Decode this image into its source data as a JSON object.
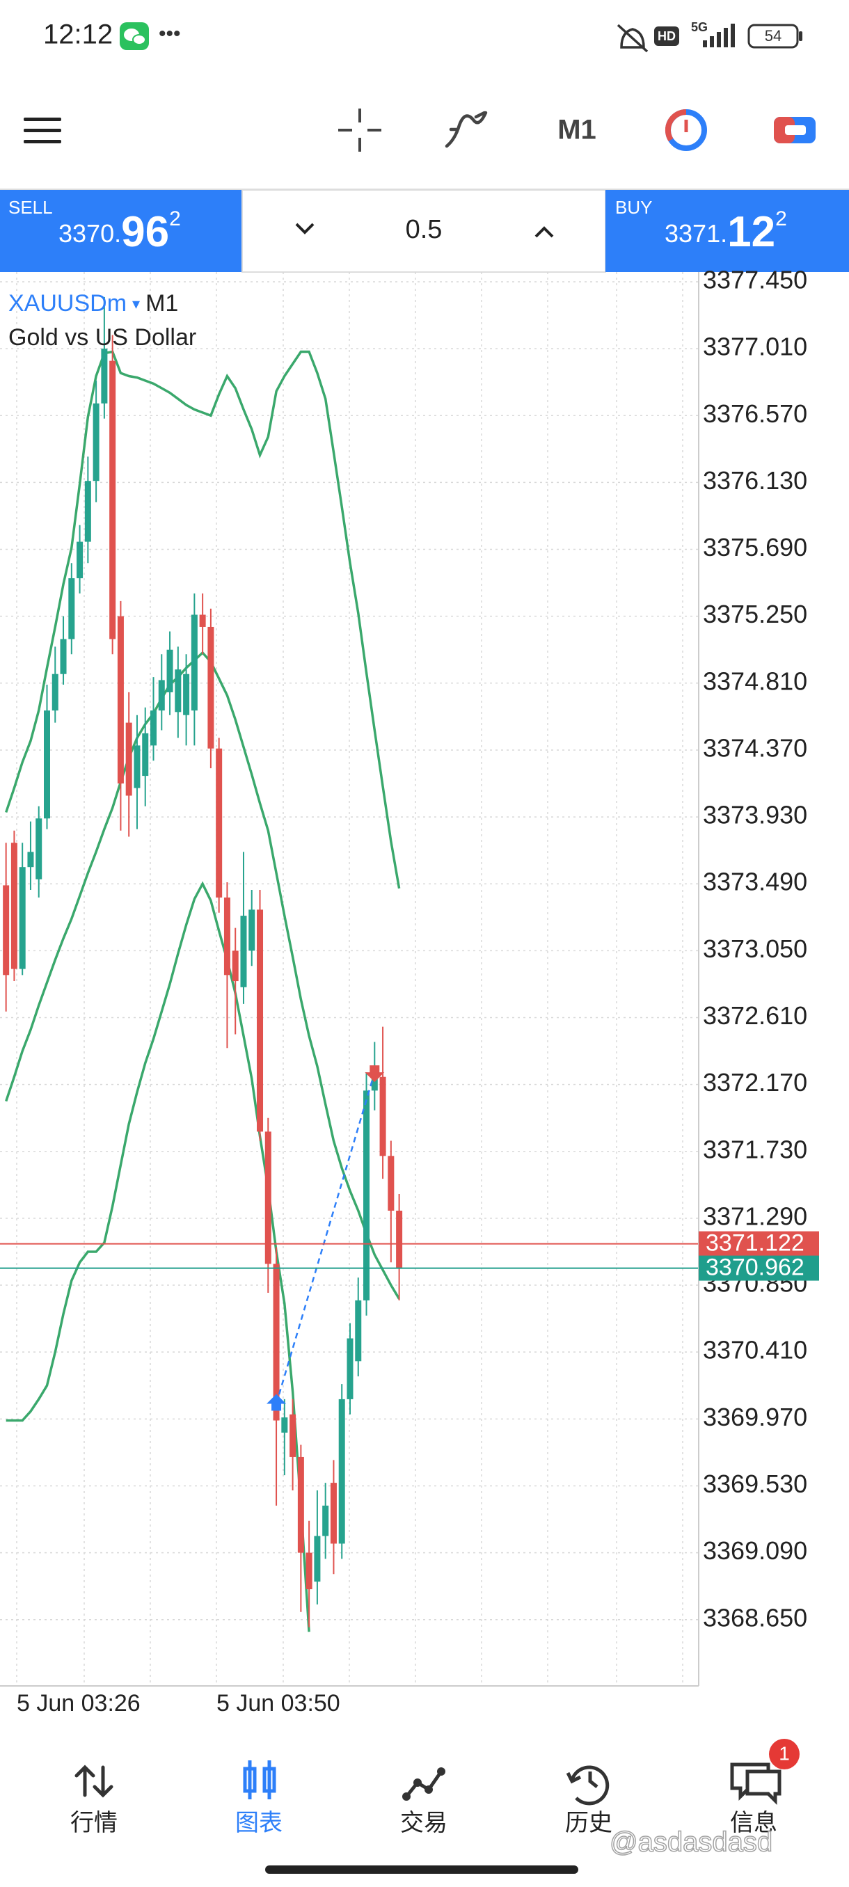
{
  "status_bar": {
    "time": "12:12",
    "more": "•••",
    "hd": "HD",
    "network": "5G",
    "battery": "54"
  },
  "toolbar": {
    "timeframe": "M1"
  },
  "trade_panel": {
    "sell": {
      "label": "SELL",
      "price_prefix": "3370.",
      "price_main": "96",
      "price_sup": "2"
    },
    "lot": "0.5",
    "buy": {
      "label": "BUY",
      "price_prefix": "3371.",
      "price_main": "12",
      "price_sup": "2"
    }
  },
  "chart_data": {
    "type": "candlestick",
    "symbol": "XAUUSDm",
    "symbol_menu": "▾",
    "timeframe": "M1",
    "description": "Gold vs US Dollar",
    "x_labels": [
      "5 Jun 03:26",
      "5 Jun 03:50"
    ],
    "ylim": [
      3368.214,
      3377.514
    ],
    "yticks": [
      {
        "value": 3377.45,
        "label": "3377.450"
      },
      {
        "value": 3377.01,
        "label": "3377.010"
      },
      {
        "value": 3376.57,
        "label": "3376.570"
      },
      {
        "value": 3376.13,
        "label": "3376.130"
      },
      {
        "value": 3375.69,
        "label": "3375.690"
      },
      {
        "value": 3375.25,
        "label": "3375.250"
      },
      {
        "value": 3374.81,
        "label": "3374.810"
      },
      {
        "value": 3374.37,
        "label": "3374.370"
      },
      {
        "value": 3373.93,
        "label": "3373.930"
      },
      {
        "value": 3373.49,
        "label": "3373.490"
      },
      {
        "value": 3373.05,
        "label": "3373.050"
      },
      {
        "value": 3372.61,
        "label": "3372.610"
      },
      {
        "value": 3372.17,
        "label": "3372.170"
      },
      {
        "value": 3371.73,
        "label": "3371.730"
      },
      {
        "value": 3371.29,
        "label": "3371.290"
      },
      {
        "value": 3370.85,
        "label": "3370.850"
      },
      {
        "value": 3370.41,
        "label": "3370.410"
      },
      {
        "value": 3369.97,
        "label": "3369.970"
      },
      {
        "value": 3369.53,
        "label": "3369.530"
      },
      {
        "value": 3369.09,
        "label": "3369.090"
      },
      {
        "value": 3368.65,
        "label": "3368.650"
      }
    ],
    "grid": true,
    "up_color": "#26a38e",
    "down_color": "#e0524e",
    "candles": [
      {
        "open": 3373.48,
        "high": 3373.76,
        "low": 3372.65,
        "close": 3372.89
      },
      {
        "open": 3373.76,
        "high": 3373.84,
        "low": 3372.85,
        "close": 3372.93
      },
      {
        "open": 3372.93,
        "high": 3373.76,
        "low": 3372.89,
        "close": 3373.6
      },
      {
        "open": 3373.6,
        "high": 3373.9,
        "low": 3373.45,
        "close": 3373.7
      },
      {
        "open": 3373.52,
        "high": 3374.0,
        "low": 3373.4,
        "close": 3373.92
      },
      {
        "open": 3373.92,
        "high": 3374.8,
        "low": 3373.85,
        "close": 3374.63
      },
      {
        "open": 3374.63,
        "high": 3375.05,
        "low": 3374.55,
        "close": 3374.87
      },
      {
        "open": 3374.87,
        "high": 3375.25,
        "low": 3374.8,
        "close": 3375.1
      },
      {
        "open": 3375.1,
        "high": 3375.6,
        "low": 3375.0,
        "close": 3375.5
      },
      {
        "open": 3375.5,
        "high": 3375.85,
        "low": 3375.4,
        "close": 3375.74
      },
      {
        "open": 3375.74,
        "high": 3376.3,
        "low": 3375.6,
        "close": 3376.14
      },
      {
        "open": 3376.14,
        "high": 3376.8,
        "low": 3376.0,
        "close": 3376.65
      },
      {
        "open": 3376.65,
        "high": 3377.35,
        "low": 3376.55,
        "close": 3377.01
      },
      {
        "open": 3376.93,
        "high": 3377.1,
        "low": 3375.0,
        "close": 3375.1
      },
      {
        "open": 3375.25,
        "high": 3375.35,
        "low": 3373.84,
        "close": 3374.15
      },
      {
        "open": 3374.55,
        "high": 3374.75,
        "low": 3373.8,
        "close": 3374.07
      },
      {
        "open": 3374.12,
        "high": 3374.6,
        "low": 3373.85,
        "close": 3374.4
      },
      {
        "open": 3374.2,
        "high": 3374.65,
        "low": 3374.0,
        "close": 3374.48
      },
      {
        "open": 3374.4,
        "high": 3374.85,
        "low": 3374.3,
        "close": 3374.63
      },
      {
        "open": 3374.63,
        "high": 3375.0,
        "low": 3374.5,
        "close": 3374.83
      },
      {
        "open": 3374.75,
        "high": 3375.15,
        "low": 3374.6,
        "close": 3375.03
      },
      {
        "open": 3374.62,
        "high": 3375.05,
        "low": 3374.45,
        "close": 3374.9
      },
      {
        "open": 3374.6,
        "high": 3375.0,
        "low": 3374.4,
        "close": 3374.87
      },
      {
        "open": 3374.63,
        "high": 3375.4,
        "low": 3374.4,
        "close": 3375.26
      },
      {
        "open": 3375.26,
        "high": 3375.4,
        "low": 3375.0,
        "close": 3375.18
      },
      {
        "open": 3375.18,
        "high": 3375.3,
        "low": 3374.25,
        "close": 3374.38
      },
      {
        "open": 3374.38,
        "high": 3374.45,
        "low": 3373.3,
        "close": 3373.4
      },
      {
        "open": 3373.4,
        "high": 3373.5,
        "low": 3372.41,
        "close": 3372.89
      },
      {
        "open": 3373.05,
        "high": 3373.2,
        "low": 3372.5,
        "close": 3372.85
      },
      {
        "open": 3372.81,
        "high": 3373.7,
        "low": 3372.7,
        "close": 3373.28
      },
      {
        "open": 3373.05,
        "high": 3373.45,
        "low": 3372.95,
        "close": 3373.32
      },
      {
        "open": 3373.32,
        "high": 3373.45,
        "low": 3371.8,
        "close": 3371.86
      },
      {
        "open": 3371.86,
        "high": 3371.95,
        "low": 3370.8,
        "close": 3370.99
      },
      {
        "open": 3370.99,
        "high": 3371.1,
        "low": 3369.4,
        "close": 3369.96
      },
      {
        "open": 3369.88,
        "high": 3370.1,
        "low": 3369.6,
        "close": 3369.98
      },
      {
        "open": 3370.0,
        "high": 3370.1,
        "low": 3369.5,
        "close": 3369.72
      },
      {
        "open": 3369.72,
        "high": 3369.8,
        "low": 3368.7,
        "close": 3369.09
      },
      {
        "open": 3369.09,
        "high": 3369.3,
        "low": 3368.6,
        "close": 3368.85
      },
      {
        "open": 3368.9,
        "high": 3369.5,
        "low": 3368.75,
        "close": 3369.2
      },
      {
        "open": 3369.2,
        "high": 3369.55,
        "low": 3369.05,
        "close": 3369.4
      },
      {
        "open": 3369.55,
        "high": 3369.7,
        "low": 3368.95,
        "close": 3369.15
      },
      {
        "open": 3369.15,
        "high": 3370.2,
        "low": 3369.05,
        "close": 3370.1
      },
      {
        "open": 3370.1,
        "high": 3370.6,
        "low": 3370.0,
        "close": 3370.5
      },
      {
        "open": 3370.35,
        "high": 3370.9,
        "low": 3370.25,
        "close": 3370.75
      },
      {
        "open": 3370.75,
        "high": 3372.25,
        "low": 3370.65,
        "close": 3372.13
      },
      {
        "open": 3372.13,
        "high": 3372.45,
        "low": 3372.0,
        "close": 3372.25
      },
      {
        "open": 3372.22,
        "high": 3372.55,
        "low": 3371.55,
        "close": 3371.7
      },
      {
        "open": 3371.7,
        "high": 3371.8,
        "low": 3371.0,
        "close": 3371.34
      },
      {
        "open": 3371.34,
        "high": 3371.45,
        "low": 3370.75,
        "close": 3370.96
      }
    ],
    "bands": {
      "color": "#3aa86c",
      "upper": [
        3373.96,
        3374.12,
        3374.29,
        3374.43,
        3374.63,
        3374.91,
        3375.18,
        3375.46,
        3375.7,
        3376.12,
        3376.56,
        3376.83,
        3376.98,
        3376.99,
        3376.85,
        3376.83,
        3376.82,
        3376.8,
        3376.78,
        3376.75,
        3376.72,
        3376.68,
        3376.64,
        3376.61,
        3376.59,
        3376.57,
        3376.71,
        3376.83,
        3376.75,
        3376.61,
        3376.48,
        3376.31,
        3376.43,
        3376.73,
        3376.83,
        3376.91,
        3376.99,
        3376.99,
        3376.85,
        3376.68,
        3376.33,
        3375.97,
        3375.6,
        3375.27,
        3374.88,
        3374.5,
        3374.13,
        3373.77,
        3373.46
      ],
      "middle": [
        3372.06,
        3372.22,
        3372.39,
        3372.53,
        3372.69,
        3372.84,
        3372.99,
        3373.13,
        3373.26,
        3373.41,
        3373.56,
        3373.7,
        3373.85,
        3373.99,
        3374.16,
        3374.32,
        3374.45,
        3374.54,
        3374.61,
        3374.71,
        3374.8,
        3374.85,
        3374.91,
        3374.96,
        3375.01,
        3374.95,
        3374.84,
        3374.73,
        3374.57,
        3374.39,
        3374.21,
        3374.02,
        3373.84,
        3373.56,
        3373.28,
        3373.01,
        3372.73,
        3372.49,
        3372.29,
        3372.04,
        3371.8,
        3371.62,
        3371.47,
        3371.34,
        3371.19,
        3371.05,
        3370.95,
        3370.85,
        3370.76
      ],
      "lower": [
        3369.96,
        3369.96,
        3369.96,
        3370.02,
        3370.1,
        3370.19,
        3370.41,
        3370.66,
        3370.88,
        3371.0,
        3371.07,
        3371.07,
        3371.13,
        3371.37,
        3371.64,
        3371.91,
        3372.12,
        3372.31,
        3372.47,
        3372.65,
        3372.83,
        3373.03,
        3373.22,
        3373.39,
        3373.49,
        3373.38,
        3373.18,
        3372.99,
        3372.77,
        3372.49,
        3372.21,
        3371.83,
        3371.49,
        3371.07,
        3370.73,
        3370.15,
        3369.4,
        3368.57,
        null,
        null,
        null,
        null,
        null,
        null,
        null,
        null,
        null,
        null,
        null
      ]
    },
    "price_lines": [
      {
        "value": 3371.122,
        "color": "#e0524e"
      },
      {
        "value": 3370.962,
        "color": "#1f9e8c"
      }
    ],
    "trade": {
      "buy_price": 3370.07,
      "sell_price": 3372.25
    }
  },
  "nav": {
    "items": [
      "行情",
      "图表",
      "交易",
      "历史",
      "信息"
    ],
    "badge": "1"
  },
  "watermark": "@asdasdasd"
}
